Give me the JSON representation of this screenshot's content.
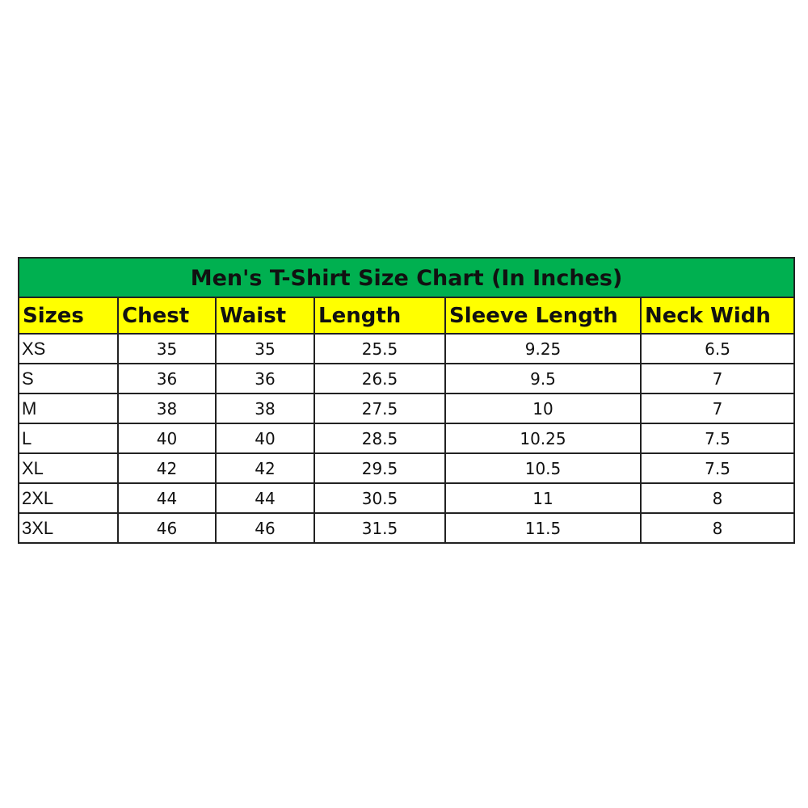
{
  "title": "Men's T-Shirt Size Chart (In Inches)",
  "colors": {
    "title_bg": "#00B050",
    "header_bg": "#FFFF00"
  },
  "headers": [
    "Sizes",
    "Chest",
    "Waist",
    "Length",
    "Sleeve Length",
    "Neck Widh"
  ],
  "rows": [
    [
      "XS",
      "35",
      "35",
      "25.5",
      "9.25",
      "6.5"
    ],
    [
      "S",
      "36",
      "36",
      "26.5",
      "9.5",
      "7"
    ],
    [
      "M",
      "38",
      "38",
      "27.5",
      "10",
      "7"
    ],
    [
      "L",
      "40",
      "40",
      "28.5",
      "10.25",
      "7.5"
    ],
    [
      "XL",
      "42",
      "42",
      "29.5",
      "10.5",
      "7.5"
    ],
    [
      "2XL",
      "44",
      "44",
      "30.5",
      "11",
      "8"
    ],
    [
      "3XL",
      "46",
      "46",
      "31.5",
      "11.5",
      "8"
    ]
  ]
}
